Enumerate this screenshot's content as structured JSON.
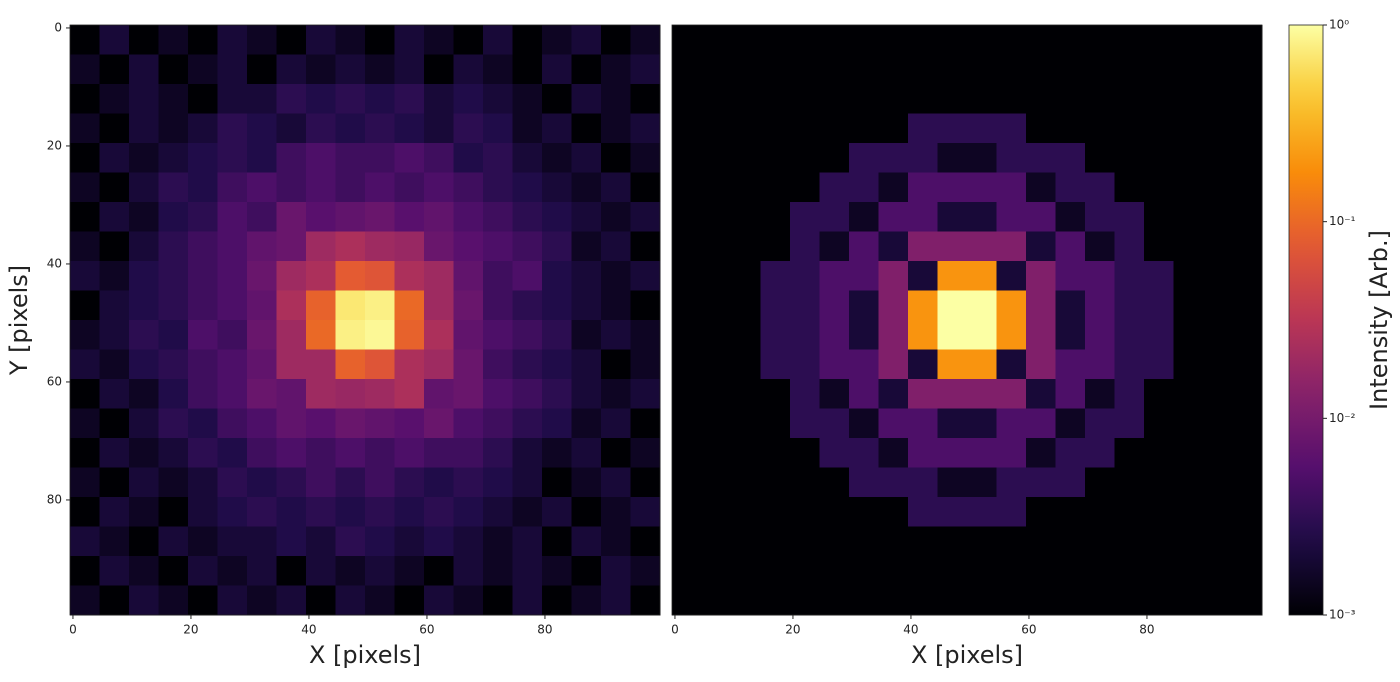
{
  "chart_data": {
    "type": "heatmap",
    "y_label": "Y [pixels]",
    "xlim": [
      -0.5,
      99.5
    ],
    "ylim": [
      99.5,
      -0.5
    ],
    "xticks": [
      0,
      20,
      40,
      60,
      80
    ],
    "yticks": [
      0,
      20,
      40,
      60,
      80
    ],
    "colorbar": {
      "label": "Intensity [Arb.]",
      "lim": [
        0.001,
        1
      ],
      "log": true,
      "colormap": "inferno",
      "ticks": [
        {
          "value": 0.001,
          "label": "10⁻³"
        },
        {
          "value": 0.01,
          "label": "10⁻²"
        },
        {
          "value": 0.1,
          "label": "10⁻¹"
        },
        {
          "value": 1,
          "label": "10⁰"
        }
      ]
    },
    "panels": [
      {
        "x_label": "X [pixels]",
        "show_yticks": true,
        "z": [
          [
            0.001,
            0.002,
            0.001,
            0.0015,
            0.001,
            0.002,
            0.0015,
            0.001,
            0.002,
            0.0015,
            0.001,
            0.002,
            0.0015,
            0.001,
            0.002,
            0.001,
            0.0015,
            0.002,
            0.001,
            0.0015
          ],
          [
            0.0015,
            0.001,
            0.002,
            0.001,
            0.0015,
            0.002,
            0.001,
            0.002,
            0.0015,
            0.002,
            0.0015,
            0.002,
            0.001,
            0.002,
            0.0015,
            0.001,
            0.002,
            0.001,
            0.0015,
            0.002
          ],
          [
            0.001,
            0.0015,
            0.002,
            0.0015,
            0.001,
            0.002,
            0.002,
            0.003,
            0.0025,
            0.003,
            0.0025,
            0.003,
            0.002,
            0.0025,
            0.002,
            0.0015,
            0.001,
            0.002,
            0.0015,
            0.001
          ],
          [
            0.0015,
            0.001,
            0.002,
            0.0015,
            0.002,
            0.003,
            0.0025,
            0.002,
            0.003,
            0.0025,
            0.003,
            0.0025,
            0.002,
            0.003,
            0.0025,
            0.0015,
            0.002,
            0.001,
            0.0015,
            0.002
          ],
          [
            0.001,
            0.002,
            0.0015,
            0.002,
            0.0025,
            0.003,
            0.0025,
            0.004,
            0.005,
            0.004,
            0.004,
            0.005,
            0.004,
            0.0025,
            0.003,
            0.002,
            0.0015,
            0.002,
            0.001,
            0.0015
          ],
          [
            0.0015,
            0.001,
            0.002,
            0.003,
            0.0025,
            0.004,
            0.005,
            0.004,
            0.005,
            0.004,
            0.005,
            0.004,
            0.005,
            0.004,
            0.003,
            0.0025,
            0.002,
            0.0015,
            0.002,
            0.001
          ],
          [
            0.001,
            0.002,
            0.0015,
            0.0025,
            0.003,
            0.005,
            0.004,
            0.008,
            0.006,
            0.007,
            0.008,
            0.006,
            0.007,
            0.005,
            0.004,
            0.003,
            0.0025,
            0.002,
            0.0015,
            0.002
          ],
          [
            0.0015,
            0.001,
            0.002,
            0.003,
            0.004,
            0.005,
            0.007,
            0.008,
            0.02,
            0.025,
            0.02,
            0.018,
            0.008,
            0.006,
            0.005,
            0.004,
            0.003,
            0.0015,
            0.002,
            0.001
          ],
          [
            0.002,
            0.0015,
            0.0025,
            0.003,
            0.004,
            0.005,
            0.008,
            0.02,
            0.025,
            0.08,
            0.07,
            0.025,
            0.02,
            0.007,
            0.004,
            0.005,
            0.0025,
            0.002,
            0.0015,
            0.002
          ],
          [
            0.001,
            0.002,
            0.0025,
            0.003,
            0.004,
            0.005,
            0.007,
            0.025,
            0.09,
            0.7,
            0.8,
            0.1,
            0.02,
            0.008,
            0.004,
            0.003,
            0.0025,
            0.002,
            0.0015,
            0.001
          ],
          [
            0.0015,
            0.002,
            0.003,
            0.0025,
            0.005,
            0.004,
            0.008,
            0.02,
            0.1,
            0.8,
            0.9,
            0.09,
            0.025,
            0.007,
            0.005,
            0.004,
            0.003,
            0.0015,
            0.002,
            0.0015
          ],
          [
            0.002,
            0.0015,
            0.0025,
            0.003,
            0.004,
            0.005,
            0.007,
            0.02,
            0.02,
            0.09,
            0.07,
            0.025,
            0.02,
            0.008,
            0.004,
            0.003,
            0.0025,
            0.002,
            0.001,
            0.0015
          ],
          [
            0.001,
            0.002,
            0.0015,
            0.0025,
            0.004,
            0.005,
            0.008,
            0.007,
            0.02,
            0.018,
            0.02,
            0.025,
            0.007,
            0.008,
            0.005,
            0.004,
            0.003,
            0.002,
            0.0015,
            0.002
          ],
          [
            0.0015,
            0.001,
            0.002,
            0.003,
            0.0025,
            0.004,
            0.005,
            0.007,
            0.006,
            0.008,
            0.007,
            0.006,
            0.008,
            0.005,
            0.004,
            0.003,
            0.0025,
            0.0015,
            0.002,
            0.001
          ],
          [
            0.001,
            0.002,
            0.0015,
            0.002,
            0.003,
            0.0025,
            0.004,
            0.005,
            0.004,
            0.005,
            0.004,
            0.005,
            0.004,
            0.004,
            0.003,
            0.002,
            0.0015,
            0.002,
            0.001,
            0.0015
          ],
          [
            0.0015,
            0.001,
            0.002,
            0.0015,
            0.002,
            0.003,
            0.0025,
            0.003,
            0.004,
            0.003,
            0.004,
            0.003,
            0.0025,
            0.003,
            0.0025,
            0.002,
            0.001,
            0.0015,
            0.002,
            0.001
          ],
          [
            0.001,
            0.002,
            0.0015,
            0.001,
            0.002,
            0.0025,
            0.003,
            0.0025,
            0.003,
            0.0025,
            0.003,
            0.0025,
            0.003,
            0.0025,
            0.002,
            0.0015,
            0.002,
            0.001,
            0.0015,
            0.002
          ],
          [
            0.002,
            0.0015,
            0.001,
            0.002,
            0.0015,
            0.002,
            0.002,
            0.0025,
            0.002,
            0.003,
            0.0025,
            0.002,
            0.0025,
            0.002,
            0.0015,
            0.002,
            0.001,
            0.002,
            0.0015,
            0.001
          ],
          [
            0.001,
            0.002,
            0.0015,
            0.001,
            0.002,
            0.0015,
            0.002,
            0.001,
            0.002,
            0.0015,
            0.002,
            0.0015,
            0.001,
            0.002,
            0.0015,
            0.002,
            0.0015,
            0.001,
            0.002,
            0.0015
          ],
          [
            0.0015,
            0.001,
            0.002,
            0.0015,
            0.001,
            0.002,
            0.0015,
            0.002,
            0.001,
            0.002,
            0.0015,
            0.001,
            0.002,
            0.0015,
            0.001,
            0.002,
            0.001,
            0.0015,
            0.002,
            0.001
          ]
        ]
      },
      {
        "x_label": "X [pixels]",
        "show_yticks": false,
        "z": [
          [
            0.001,
            0.001,
            0.001,
            0.001,
            0.001,
            0.001,
            0.001,
            0.001,
            0.001,
            0.001,
            0.001,
            0.001,
            0.001,
            0.001,
            0.001,
            0.001,
            0.001,
            0.001,
            0.001,
            0.001
          ],
          [
            0.001,
            0.001,
            0.001,
            0.001,
            0.001,
            0.001,
            0.001,
            0.001,
            0.001,
            0.001,
            0.001,
            0.001,
            0.001,
            0.001,
            0.001,
            0.001,
            0.001,
            0.001,
            0.001,
            0.001
          ],
          [
            0.001,
            0.001,
            0.001,
            0.001,
            0.001,
            0.001,
            0.001,
            0.001,
            0.001,
            0.001,
            0.001,
            0.001,
            0.001,
            0.001,
            0.001,
            0.001,
            0.001,
            0.001,
            0.001,
            0.001
          ],
          [
            0.001,
            0.001,
            0.001,
            0.001,
            0.001,
            0.001,
            0.001,
            0.001,
            0.003,
            0.003,
            0.003,
            0.003,
            0.001,
            0.001,
            0.001,
            0.001,
            0.001,
            0.001,
            0.001,
            0.001
          ],
          [
            0.001,
            0.001,
            0.001,
            0.001,
            0.001,
            0.001,
            0.003,
            0.003,
            0.003,
            0.0015,
            0.0015,
            0.003,
            0.003,
            0.003,
            0.001,
            0.001,
            0.001,
            0.001,
            0.001,
            0.001
          ],
          [
            0.001,
            0.001,
            0.001,
            0.001,
            0.001,
            0.003,
            0.003,
            0.0015,
            0.005,
            0.005,
            0.005,
            0.005,
            0.0015,
            0.003,
            0.003,
            0.001,
            0.001,
            0.001,
            0.001,
            0.001
          ],
          [
            0.001,
            0.001,
            0.001,
            0.001,
            0.003,
            0.003,
            0.0015,
            0.005,
            0.005,
            0.002,
            0.002,
            0.005,
            0.005,
            0.0015,
            0.003,
            0.003,
            0.001,
            0.001,
            0.001,
            0.001
          ],
          [
            0.001,
            0.001,
            0.001,
            0.001,
            0.003,
            0.0015,
            0.005,
            0.002,
            0.012,
            0.012,
            0.012,
            0.012,
            0.002,
            0.005,
            0.0015,
            0.003,
            0.001,
            0.001,
            0.001,
            0.001
          ],
          [
            0.001,
            0.001,
            0.001,
            0.003,
            0.003,
            0.005,
            0.005,
            0.012,
            0.002,
            0.2,
            0.2,
            0.002,
            0.012,
            0.005,
            0.005,
            0.003,
            0.003,
            0.001,
            0.001,
            0.001
          ],
          [
            0.001,
            0.001,
            0.001,
            0.003,
            0.003,
            0.005,
            0.002,
            0.012,
            0.2,
            1,
            1,
            0.2,
            0.012,
            0.002,
            0.005,
            0.003,
            0.003,
            0.001,
            0.001,
            0.001
          ],
          [
            0.001,
            0.001,
            0.001,
            0.003,
            0.003,
            0.005,
            0.002,
            0.012,
            0.2,
            1,
            1,
            0.2,
            0.012,
            0.002,
            0.005,
            0.003,
            0.003,
            0.001,
            0.001,
            0.001
          ],
          [
            0.001,
            0.001,
            0.001,
            0.003,
            0.003,
            0.005,
            0.005,
            0.012,
            0.002,
            0.2,
            0.2,
            0.002,
            0.012,
            0.005,
            0.005,
            0.003,
            0.003,
            0.001,
            0.001,
            0.001
          ],
          [
            0.001,
            0.001,
            0.001,
            0.001,
            0.003,
            0.0015,
            0.005,
            0.002,
            0.012,
            0.012,
            0.012,
            0.012,
            0.002,
            0.005,
            0.0015,
            0.003,
            0.001,
            0.001,
            0.001,
            0.001
          ],
          [
            0.001,
            0.001,
            0.001,
            0.001,
            0.003,
            0.003,
            0.0015,
            0.005,
            0.005,
            0.002,
            0.002,
            0.005,
            0.005,
            0.0015,
            0.003,
            0.003,
            0.001,
            0.001,
            0.001,
            0.001
          ],
          [
            0.001,
            0.001,
            0.001,
            0.001,
            0.001,
            0.003,
            0.003,
            0.0015,
            0.005,
            0.005,
            0.005,
            0.005,
            0.0015,
            0.003,
            0.003,
            0.001,
            0.001,
            0.001,
            0.001,
            0.001
          ],
          [
            0.001,
            0.001,
            0.001,
            0.001,
            0.001,
            0.001,
            0.003,
            0.003,
            0.003,
            0.0015,
            0.0015,
            0.003,
            0.003,
            0.003,
            0.001,
            0.001,
            0.001,
            0.001,
            0.001,
            0.001
          ],
          [
            0.001,
            0.001,
            0.001,
            0.001,
            0.001,
            0.001,
            0.001,
            0.001,
            0.003,
            0.003,
            0.003,
            0.003,
            0.001,
            0.001,
            0.001,
            0.001,
            0.001,
            0.001,
            0.001,
            0.001
          ],
          [
            0.001,
            0.001,
            0.001,
            0.001,
            0.001,
            0.001,
            0.001,
            0.001,
            0.001,
            0.001,
            0.001,
            0.001,
            0.001,
            0.001,
            0.001,
            0.001,
            0.001,
            0.001,
            0.001,
            0.001
          ],
          [
            0.001,
            0.001,
            0.001,
            0.001,
            0.001,
            0.001,
            0.001,
            0.001,
            0.001,
            0.001,
            0.001,
            0.001,
            0.001,
            0.001,
            0.001,
            0.001,
            0.001,
            0.001,
            0.001,
            0.001
          ],
          [
            0.001,
            0.001,
            0.001,
            0.001,
            0.001,
            0.001,
            0.001,
            0.001,
            0.001,
            0.001,
            0.001,
            0.001,
            0.001,
            0.001,
            0.001,
            0.001,
            0.001,
            0.001,
            0.001,
            0.001
          ]
        ]
      }
    ]
  }
}
